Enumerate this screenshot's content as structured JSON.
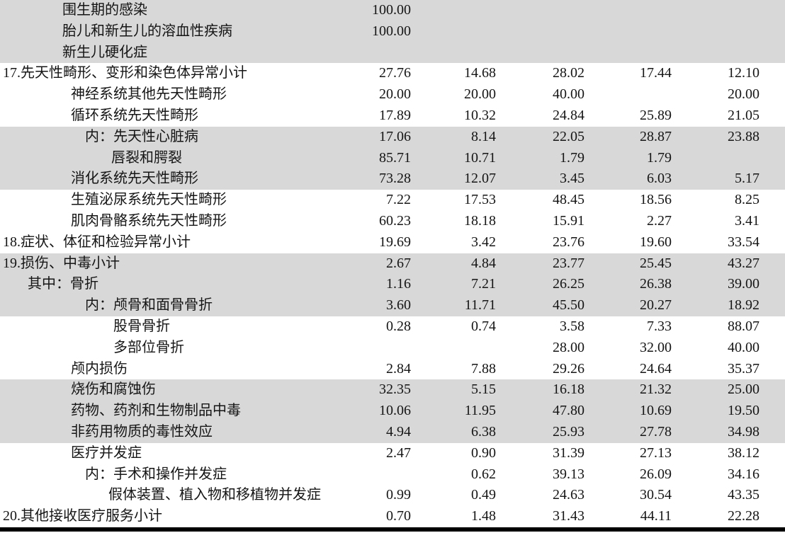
{
  "table": {
    "description_rows": [
      {
        "label": "围生期的感染",
        "indent": 88,
        "shaded": true,
        "values": [
          "100.00",
          "",
          "",
          "",
          ""
        ]
      },
      {
        "label": "胎儿和新生儿的溶血性疾病",
        "indent": 88,
        "shaded": true,
        "values": [
          "100.00",
          "",
          "",
          "",
          ""
        ]
      },
      {
        "label": "新生儿硬化症",
        "indent": 88,
        "shaded": true,
        "values": [
          "",
          "",
          "",
          "",
          ""
        ]
      },
      {
        "label": "17.先天性畸形、变形和染色体异常小计",
        "indent": 4,
        "shaded": false,
        "values": [
          "27.76",
          "14.68",
          "28.02",
          "17.44",
          "12.10"
        ]
      },
      {
        "label": "神经系统其他先天性畸形",
        "indent": 100,
        "shaded": false,
        "values": [
          "20.00",
          "20.00",
          "40.00",
          "",
          "20.00"
        ]
      },
      {
        "label": "循环系统先天性畸形",
        "indent": 100,
        "shaded": false,
        "values": [
          "17.89",
          "10.32",
          "24.84",
          "25.89",
          "21.05"
        ]
      },
      {
        "label": "内：先天性心脏病",
        "indent": 120,
        "shaded": true,
        "values": [
          "17.06",
          "8.14",
          "22.05",
          "28.87",
          "23.88"
        ]
      },
      {
        "label": "唇裂和腭裂",
        "indent": 157,
        "shaded": true,
        "values": [
          "85.71",
          "10.71",
          "1.79",
          "1.79",
          ""
        ]
      },
      {
        "label": "消化系统先天性畸形",
        "indent": 100,
        "shaded": true,
        "values": [
          "73.28",
          "12.07",
          "3.45",
          "6.03",
          "5.17"
        ]
      },
      {
        "label": "生殖泌尿系统先天性畸形",
        "indent": 100,
        "shaded": false,
        "values": [
          "7.22",
          "17.53",
          "48.45",
          "18.56",
          "8.25"
        ]
      },
      {
        "label": "肌肉骨骼系统先天性畸形",
        "indent": 100,
        "shaded": false,
        "values": [
          "60.23",
          "18.18",
          "15.91",
          "2.27",
          "3.41"
        ]
      },
      {
        "label": "18.症状、体征和检验异常小计",
        "indent": 4,
        "shaded": false,
        "values": [
          "19.69",
          "3.42",
          "23.76",
          "19.60",
          "33.54"
        ]
      },
      {
        "label": "19.损伤、中毒小计",
        "indent": 4,
        "shaded": true,
        "values": [
          "2.67",
          "4.84",
          "23.77",
          "25.45",
          "43.27"
        ]
      },
      {
        "label": "其中：骨折",
        "indent": 39,
        "shaded": true,
        "values": [
          "1.16",
          "7.21",
          "26.25",
          "26.38",
          "39.00"
        ]
      },
      {
        "label": "内：颅骨和面骨骨折",
        "indent": 120,
        "shaded": true,
        "values": [
          "3.60",
          "11.71",
          "45.50",
          "20.27",
          "18.92"
        ]
      },
      {
        "label": "股骨骨折",
        "indent": 160,
        "shaded": false,
        "values": [
          "0.28",
          "0.74",
          "3.58",
          "7.33",
          "88.07"
        ]
      },
      {
        "label": "多部位骨折",
        "indent": 160,
        "shaded": false,
        "values": [
          "",
          "",
          "28.00",
          "32.00",
          "40.00"
        ]
      },
      {
        "label": "颅内损伤",
        "indent": 100,
        "shaded": false,
        "values": [
          "2.84",
          "7.88",
          "29.26",
          "24.64",
          "35.37"
        ]
      },
      {
        "label": "烧伤和腐蚀伤",
        "indent": 100,
        "shaded": true,
        "values": [
          "32.35",
          "5.15",
          "16.18",
          "21.32",
          "25.00"
        ]
      },
      {
        "label": "药物、药剂和生物制品中毒",
        "indent": 100,
        "shaded": true,
        "values": [
          "10.06",
          "11.95",
          "47.80",
          "10.69",
          "19.50"
        ]
      },
      {
        "label": "非药用物质的毒性效应",
        "indent": 100,
        "shaded": true,
        "values": [
          "4.94",
          "6.38",
          "25.93",
          "27.78",
          "34.98"
        ]
      },
      {
        "label": "医疗并发症",
        "indent": 100,
        "shaded": false,
        "values": [
          "2.47",
          "0.90",
          "31.39",
          "27.13",
          "38.12"
        ]
      },
      {
        "label": "内：手术和操作并发症",
        "indent": 120,
        "shaded": false,
        "values": [
          "",
          "0.62",
          "39.13",
          "26.09",
          "34.16"
        ]
      },
      {
        "label": "假体装置、植入物和移植物并发症",
        "indent": 153,
        "shaded": false,
        "values": [
          "0.99",
          "0.49",
          "24.63",
          "30.54",
          "43.35"
        ]
      },
      {
        "label": "20.其他接收医疗服务小计",
        "indent": 4,
        "shaded": false,
        "values": [
          "0.70",
          "1.48",
          "31.43",
          "44.11",
          "22.28"
        ]
      }
    ]
  },
  "colors": {
    "row_shade": "#d8d8d8",
    "text": "#151515",
    "bottom_rule": "#000000",
    "background": "#ffffff"
  }
}
